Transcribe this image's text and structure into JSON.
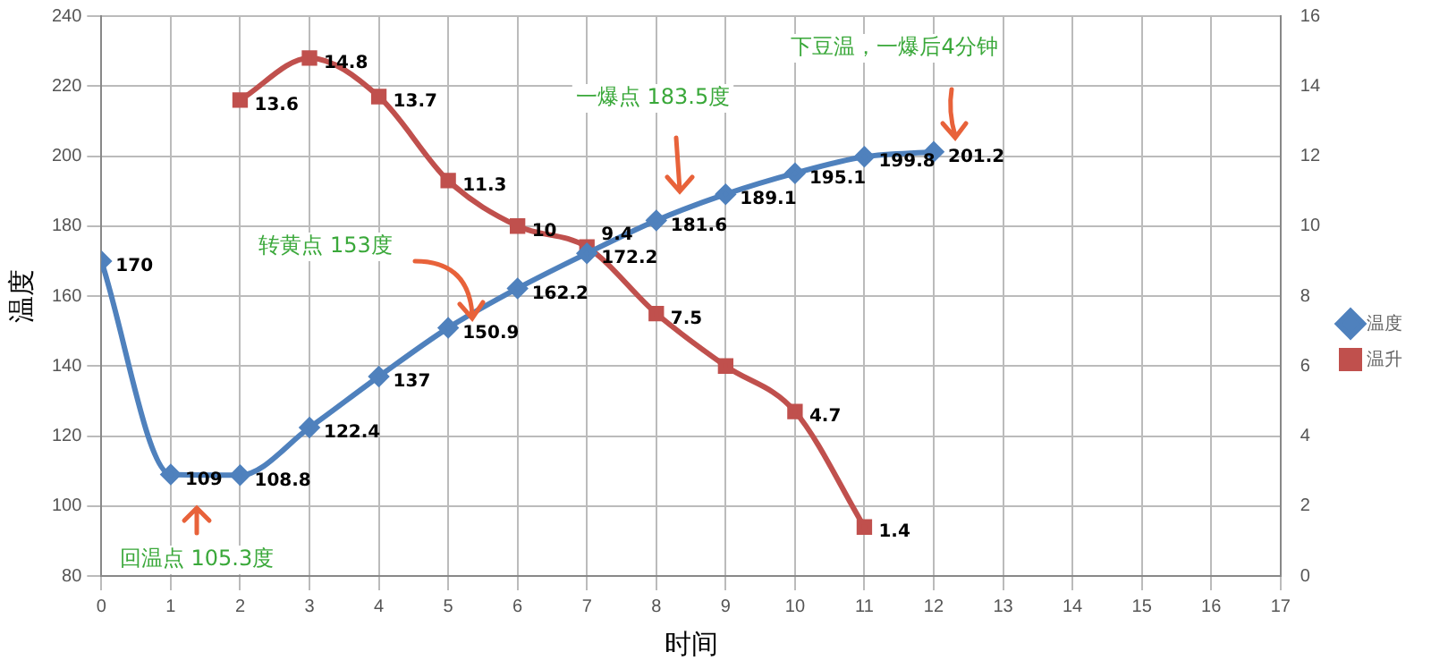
{
  "chart_data": {
    "type": "line",
    "xlabel": "时间",
    "ylabel": "温度",
    "xlim": [
      0,
      17
    ],
    "xticks": [
      0,
      1,
      2,
      3,
      4,
      5,
      6,
      7,
      8,
      9,
      10,
      11,
      12,
      13,
      14,
      15,
      16,
      17
    ],
    "ylim": [
      80,
      240
    ],
    "yticks": [
      80,
      100,
      120,
      140,
      160,
      180,
      200,
      220,
      240
    ],
    "y2lim": [
      0,
      16
    ],
    "y2ticks": [
      0,
      2,
      4,
      6,
      8,
      10,
      12,
      14,
      16
    ],
    "grid": true,
    "legend": "right",
    "line_style": "solid",
    "series": [
      {
        "name": "温度",
        "color": "#4f81bd",
        "marker": "diamond",
        "x": [
          0,
          1,
          2,
          3,
          4,
          5,
          6,
          7,
          8,
          9,
          10,
          11,
          12
        ],
        "values": [
          170,
          109,
          108.8,
          122.4,
          137,
          150.9,
          162.2,
          172.2,
          181.6,
          189.1,
          195.1,
          199.8,
          201.2
        ],
        "value_labels": [
          "170",
          "109",
          "108.8",
          "122.4",
          "137",
          "150.9",
          "162.2",
          "172.2",
          "181.6",
          "189.1",
          "195.1",
          "199.8",
          "201.2"
        ]
      },
      {
        "name": "温升",
        "color": "#c0504d",
        "marker": "square",
        "axis": "y2",
        "x": [
          2,
          3,
          4,
          5,
          6,
          7,
          8,
          9,
          10,
          11
        ],
        "values": [
          13.6,
          14.8,
          13.7,
          11.3,
          10,
          9.4,
          7.5,
          6,
          4.7,
          1.4
        ],
        "value_labels": [
          "13.6",
          "14.8",
          "13.7",
          "11.3",
          "10",
          "9.4",
          "7.5",
          null,
          "4.7",
          "1.4"
        ]
      }
    ],
    "annotations": [
      "回温点 105.3度",
      "转黄点 153度",
      "一爆点 183.5度",
      "下豆温，一爆后4分钟"
    ]
  }
}
